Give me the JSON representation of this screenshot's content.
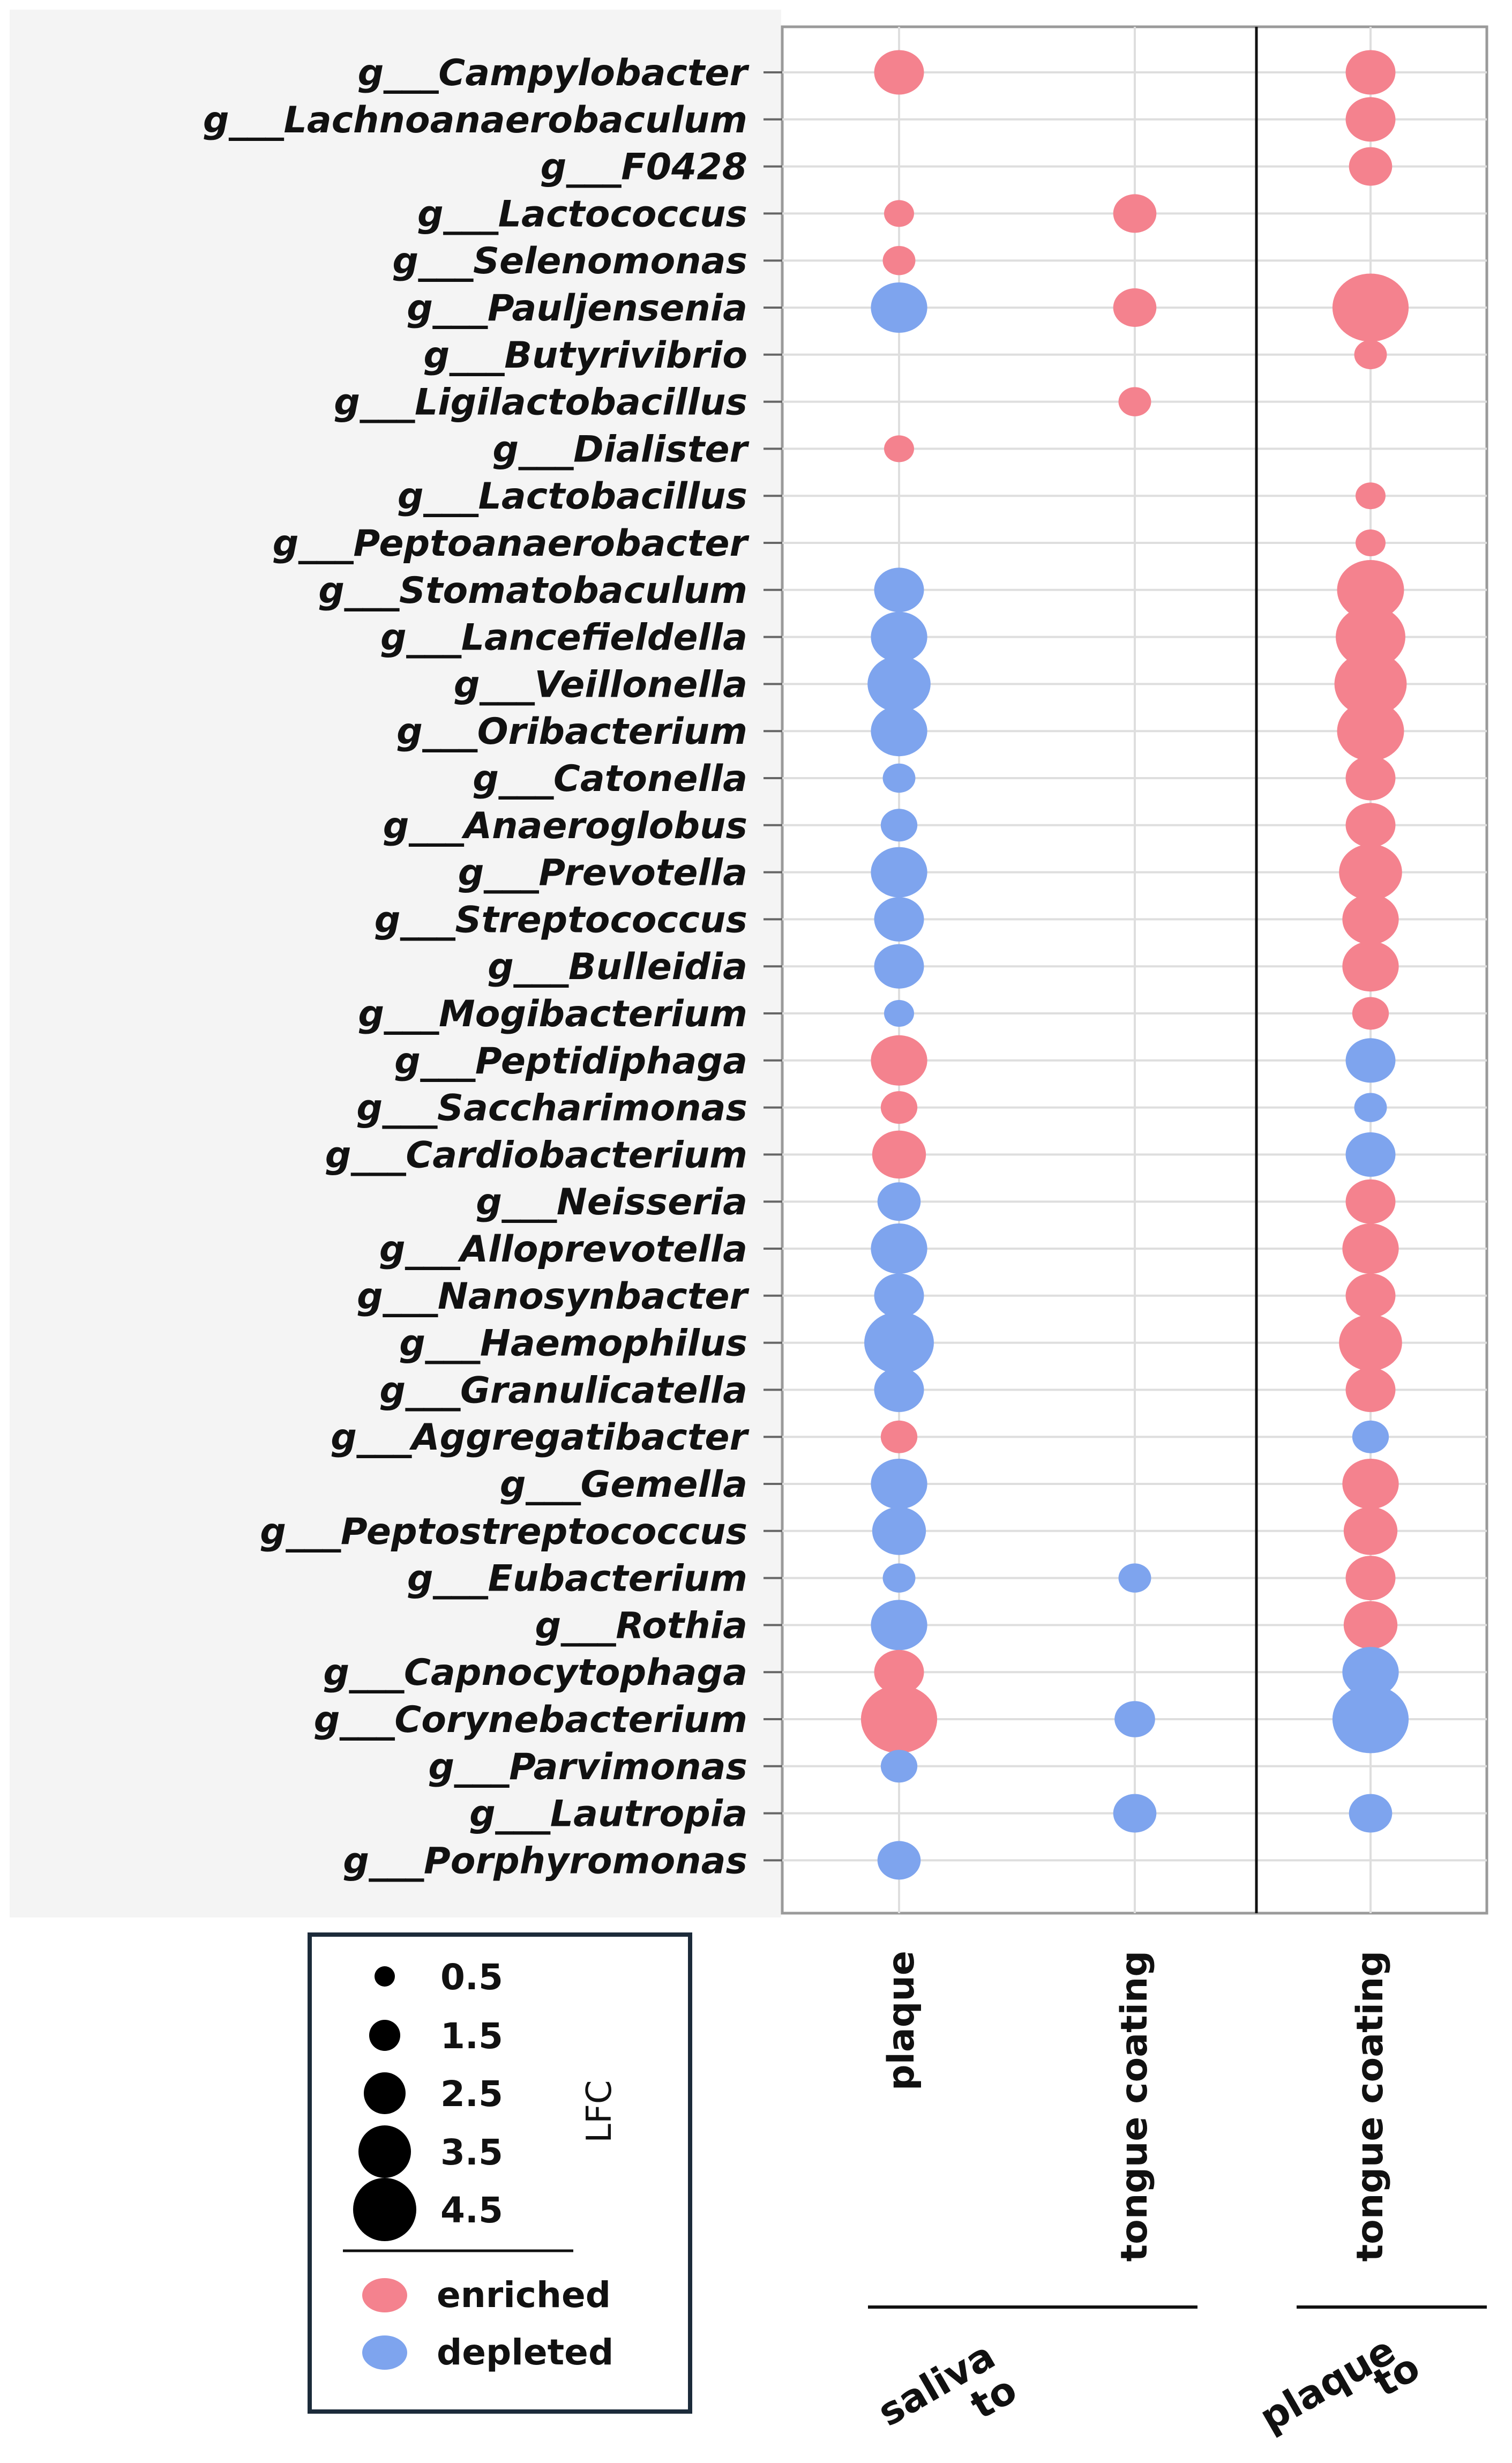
{
  "chart_data": {
    "type": "bubble-dot-plot",
    "legend_title": "LFC",
    "size_legend": [
      "0.5",
      "1.5",
      "2.5",
      "3.5",
      "4.5"
    ],
    "color_legend": [
      {
        "label": "enriched",
        "color": "#f4828e"
      },
      {
        "label": "depleted",
        "color": "#7ea4ee"
      }
    ],
    "columns": [
      "plaque",
      "tongue coating",
      "tongue coating"
    ],
    "column_groups": [
      {
        "label": "saliva to",
        "line1": "saliva",
        "line2": "to",
        "columns": [
          0,
          1
        ]
      },
      {
        "label": "plaque to",
        "line1": "plaque",
        "line2": "to",
        "columns": [
          2
        ]
      }
    ],
    "rows": [
      {
        "genus": "g___Campylobacter",
        "cells": [
          [
            2.5,
            "enriched"
          ],
          null,
          [
            2.5,
            "enriched"
          ]
        ]
      },
      {
        "genus": "g___Lachnoanaerobaculum",
        "cells": [
          null,
          null,
          [
            2.5,
            "enriched"
          ]
        ]
      },
      {
        "genus": "g___F0428",
        "cells": [
          null,
          null,
          [
            2.0,
            "enriched"
          ]
        ]
      },
      {
        "genus": "g___Lactococcus",
        "cells": [
          [
            1.0,
            "enriched"
          ],
          [
            2.0,
            "enriched"
          ],
          null
        ]
      },
      {
        "genus": "g___Selenomonas",
        "cells": [
          [
            1.2,
            "enriched"
          ],
          null,
          null
        ]
      },
      {
        "genus": "g___Pauljensenia",
        "cells": [
          [
            3.0,
            "depleted"
          ],
          [
            2.0,
            "enriched"
          ],
          [
            4.5,
            "enriched"
          ]
        ]
      },
      {
        "genus": "g___Butyrivibrio",
        "cells": [
          null,
          null,
          [
            1.2,
            "enriched"
          ]
        ]
      },
      {
        "genus": "g___Ligilactobacillus",
        "cells": [
          null,
          [
            1.2,
            "enriched"
          ],
          null
        ]
      },
      {
        "genus": "g___Dialister",
        "cells": [
          [
            1.0,
            "enriched"
          ],
          null,
          null
        ]
      },
      {
        "genus": "g___Lactobacillus",
        "cells": [
          null,
          null,
          [
            1.0,
            "enriched"
          ]
        ]
      },
      {
        "genus": "g___Peptoanaerobacter",
        "cells": [
          null,
          null,
          [
            1.0,
            "enriched"
          ]
        ]
      },
      {
        "genus": "g___Stomatobaculum",
        "cells": [
          [
            2.5,
            "depleted"
          ],
          null,
          [
            3.8,
            "enriched"
          ]
        ]
      },
      {
        "genus": "g___Lancefieldella",
        "cells": [
          [
            3.0,
            "depleted"
          ],
          null,
          [
            4.0,
            "enriched"
          ]
        ]
      },
      {
        "genus": "g___Veillonella",
        "cells": [
          [
            3.5,
            "depleted"
          ],
          null,
          [
            4.2,
            "enriched"
          ]
        ]
      },
      {
        "genus": "g___Oribacterium",
        "cells": [
          [
            3.0,
            "depleted"
          ],
          null,
          [
            3.8,
            "enriched"
          ]
        ]
      },
      {
        "genus": "g___Catonella",
        "cells": [
          [
            1.2,
            "depleted"
          ],
          null,
          [
            2.5,
            "enriched"
          ]
        ]
      },
      {
        "genus": "g___Anaeroglobus",
        "cells": [
          [
            1.5,
            "depleted"
          ],
          null,
          [
            2.5,
            "enriched"
          ]
        ]
      },
      {
        "genus": "g___Prevotella",
        "cells": [
          [
            3.0,
            "depleted"
          ],
          null,
          [
            3.5,
            "enriched"
          ]
        ]
      },
      {
        "genus": "g___Streptococcus",
        "cells": [
          [
            2.5,
            "depleted"
          ],
          null,
          [
            3.0,
            "enriched"
          ]
        ]
      },
      {
        "genus": "g___Bulleidia",
        "cells": [
          [
            2.5,
            "depleted"
          ],
          null,
          [
            3.0,
            "enriched"
          ]
        ]
      },
      {
        "genus": "g___Mogibacterium",
        "cells": [
          [
            1.0,
            "depleted"
          ],
          null,
          [
            1.5,
            "enriched"
          ]
        ]
      },
      {
        "genus": "g___Peptidiphaga",
        "cells": [
          [
            3.0,
            "enriched"
          ],
          null,
          [
            2.5,
            "depleted"
          ]
        ]
      },
      {
        "genus": "g___Saccharimonas",
        "cells": [
          [
            1.5,
            "enriched"
          ],
          null,
          [
            1.2,
            "depleted"
          ]
        ]
      },
      {
        "genus": "g___Cardiobacterium",
        "cells": [
          [
            2.8,
            "enriched"
          ],
          null,
          [
            2.5,
            "depleted"
          ]
        ]
      },
      {
        "genus": "g___Neisseria",
        "cells": [
          [
            2.0,
            "depleted"
          ],
          null,
          [
            2.5,
            "enriched"
          ]
        ]
      },
      {
        "genus": "g___Alloprevotella",
        "cells": [
          [
            3.0,
            "depleted"
          ],
          null,
          [
            3.0,
            "enriched"
          ]
        ]
      },
      {
        "genus": "g___Nanosynbacter",
        "cells": [
          [
            2.5,
            "depleted"
          ],
          null,
          [
            2.5,
            "enriched"
          ]
        ]
      },
      {
        "genus": "g___Haemophilus",
        "cells": [
          [
            4.0,
            "depleted"
          ],
          null,
          [
            3.5,
            "enriched"
          ]
        ]
      },
      {
        "genus": "g___Granulicatella",
        "cells": [
          [
            2.5,
            "depleted"
          ],
          null,
          [
            2.5,
            "enriched"
          ]
        ]
      },
      {
        "genus": "g___Aggregatibacter",
        "cells": [
          [
            1.5,
            "enriched"
          ],
          null,
          [
            1.5,
            "depleted"
          ]
        ]
      },
      {
        "genus": "g___Gemella",
        "cells": [
          [
            3.0,
            "depleted"
          ],
          null,
          [
            3.0,
            "enriched"
          ]
        ]
      },
      {
        "genus": "g___Peptostreptococcus",
        "cells": [
          [
            2.8,
            "depleted"
          ],
          null,
          [
            2.8,
            "enriched"
          ]
        ]
      },
      {
        "genus": "g___Eubacterium",
        "cells": [
          [
            1.2,
            "depleted"
          ],
          [
            1.2,
            "depleted"
          ],
          [
            2.5,
            "enriched"
          ]
        ]
      },
      {
        "genus": "g___Rothia",
        "cells": [
          [
            3.0,
            "depleted"
          ],
          null,
          [
            2.8,
            "enriched"
          ]
        ]
      },
      {
        "genus": "g___Capnocytophaga",
        "cells": [
          [
            2.5,
            "enriched"
          ],
          null,
          [
            3.0,
            "depleted"
          ]
        ]
      },
      {
        "genus": "g___Corynebacterium",
        "cells": [
          [
            4.5,
            "enriched"
          ],
          [
            1.8,
            "depleted"
          ],
          [
            4.5,
            "depleted"
          ]
        ]
      },
      {
        "genus": "g___Parvimonas",
        "cells": [
          [
            1.5,
            "depleted"
          ],
          null,
          null
        ]
      },
      {
        "genus": "g___Lautropia",
        "cells": [
          null,
          [
            2.0,
            "depleted"
          ],
          [
            2.0,
            "depleted"
          ]
        ]
      },
      {
        "genus": "g___Porphyromonas",
        "cells": [
          [
            2.0,
            "depleted"
          ],
          null,
          null
        ]
      }
    ]
  }
}
